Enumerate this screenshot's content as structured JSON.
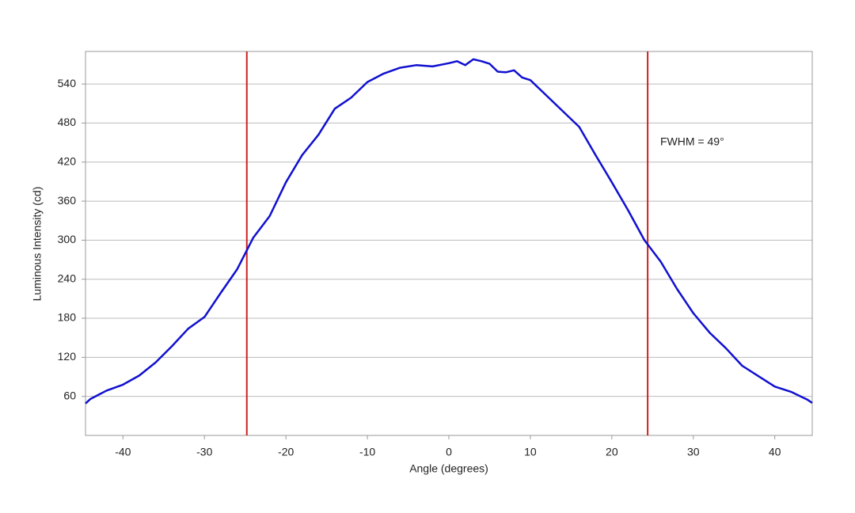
{
  "chart_data": {
    "type": "line",
    "xlabel": "Angle (degrees)",
    "ylabel": "Luminous Intensity (cd)",
    "annotation": "FWHM = 49°",
    "x": [
      -44.6,
      -44,
      -42,
      -40,
      -38,
      -36,
      -34,
      -32,
      -30,
      -28,
      -26,
      -24,
      -22,
      -20,
      -18,
      -16,
      -14,
      -12,
      -10,
      -8,
      -6,
      -4,
      -2,
      0,
      1,
      2,
      3,
      4,
      5,
      6,
      7,
      8,
      9,
      10,
      12,
      14,
      16,
      18,
      20,
      22,
      24,
      26,
      28,
      30,
      32,
      34,
      36,
      38,
      40,
      42,
      44,
      44.6
    ],
    "series": [
      {
        "color": "#1010d0",
        "values": [
          49,
          56,
          69,
          78,
          92,
          112,
          137,
          164,
          182,
          219,
          255,
          304,
          337,
          389,
          431,
          462,
          502,
          519,
          543,
          556,
          565,
          569,
          567,
          572,
          575,
          569,
          578,
          575,
          571,
          559,
          558,
          561,
          550,
          546,
          522,
          498,
          474,
          431,
          389,
          346,
          300,
          267,
          225,
          188,
          158,
          134,
          107,
          91,
          75,
          67,
          55,
          50
        ]
      }
    ],
    "vlines": [
      -24.8,
      24.4
    ],
    "vline_color": "#d02020",
    "xlim": [
      -44.6,
      44.6
    ],
    "ylim": [
      0,
      590
    ],
    "xticks": [
      -40,
      -30,
      -20,
      -10,
      0,
      10,
      20,
      30,
      40
    ],
    "yticks": [
      60,
      120,
      180,
      240,
      300,
      360,
      420,
      480,
      540
    ],
    "grid": true
  }
}
